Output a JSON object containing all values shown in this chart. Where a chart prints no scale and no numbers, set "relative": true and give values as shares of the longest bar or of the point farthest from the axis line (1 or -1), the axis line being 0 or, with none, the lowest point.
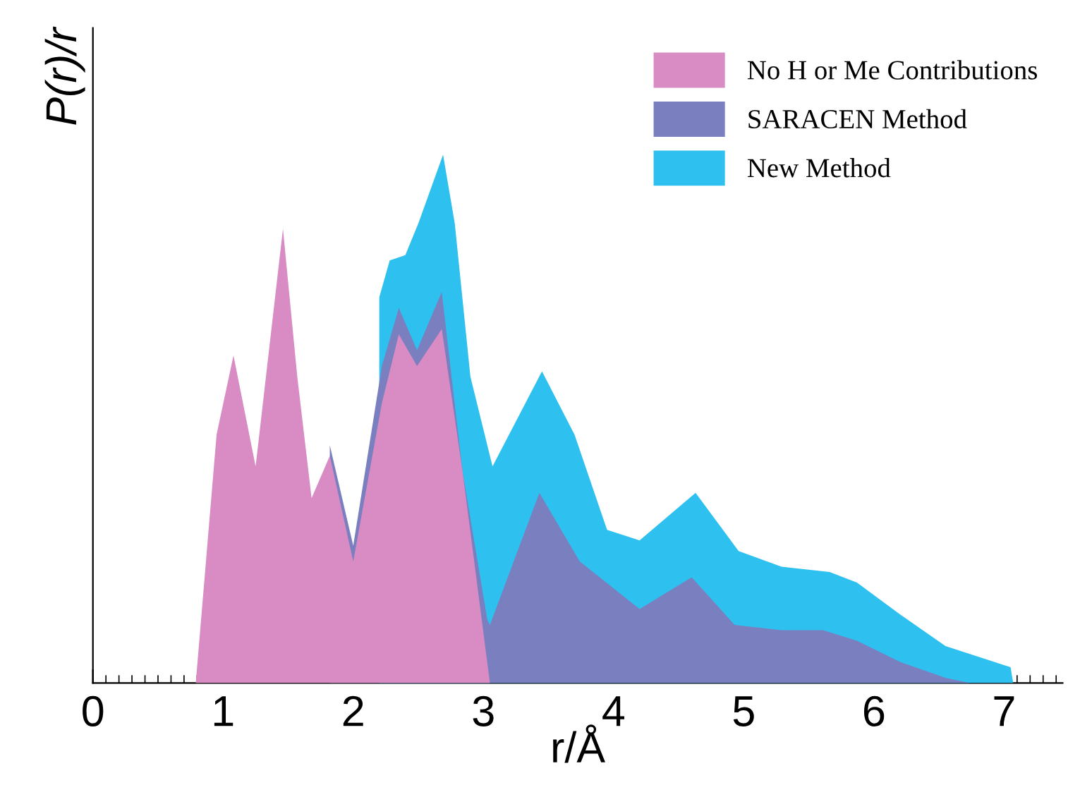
{
  "chart_data": {
    "type": "area",
    "xlabel": "r/Å",
    "ylabel": "P(r)/r",
    "relative": true,
    "xlim": [
      0,
      7.45
    ],
    "xticks": [
      0,
      1,
      2,
      3,
      4,
      5,
      6,
      7
    ],
    "legend": "top right",
    "grid": false,
    "series": [
      {
        "name": "No H or Me Contributions",
        "color": "#d98cc4",
        "x": [
          0.79,
          0.95,
          1.08,
          1.25,
          1.46,
          1.57,
          1.68,
          1.82,
          2.0,
          2.22,
          2.35,
          2.49,
          2.68,
          2.84,
          3.05
        ],
        "values": [
          0,
          0.47,
          0.62,
          0.41,
          0.86,
          0.58,
          0.35,
          0.43,
          0.23,
          0.53,
          0.66,
          0.6,
          0.67,
          0.4,
          0
        ]
      },
      {
        "name": "SARACEN Method",
        "color": "#7a7fc0",
        "x": [
          1.82,
          2.0,
          2.22,
          2.35,
          2.49,
          2.68,
          2.84,
          3.03,
          3.05,
          3.43,
          3.74,
          4.2,
          4.6,
          4.93,
          5.29,
          5.61,
          5.87,
          6.2,
          6.55,
          6.74
        ],
        "values": [
          0.45,
          0.26,
          0.6,
          0.71,
          0.63,
          0.74,
          0.4,
          0.12,
          0.11,
          0.36,
          0.23,
          0.14,
          0.2,
          0.11,
          0.1,
          0.1,
          0.08,
          0.04,
          0.01,
          0
        ]
      },
      {
        "name": "New Method",
        "color": "#2ec0ef",
        "x": [
          2.2,
          2.28,
          2.4,
          2.5,
          2.69,
          2.78,
          2.9,
          3.07,
          3.45,
          3.7,
          3.95,
          4.2,
          4.63,
          4.96,
          5.29,
          5.66,
          5.87,
          6.2,
          6.55,
          7.05,
          7.07
        ],
        "values": [
          0.73,
          0.8,
          0.81,
          0.87,
          1.0,
          0.87,
          0.58,
          0.41,
          0.59,
          0.47,
          0.29,
          0.27,
          0.36,
          0.25,
          0.22,
          0.21,
          0.19,
          0.13,
          0.07,
          0.03,
          0
        ]
      }
    ]
  }
}
